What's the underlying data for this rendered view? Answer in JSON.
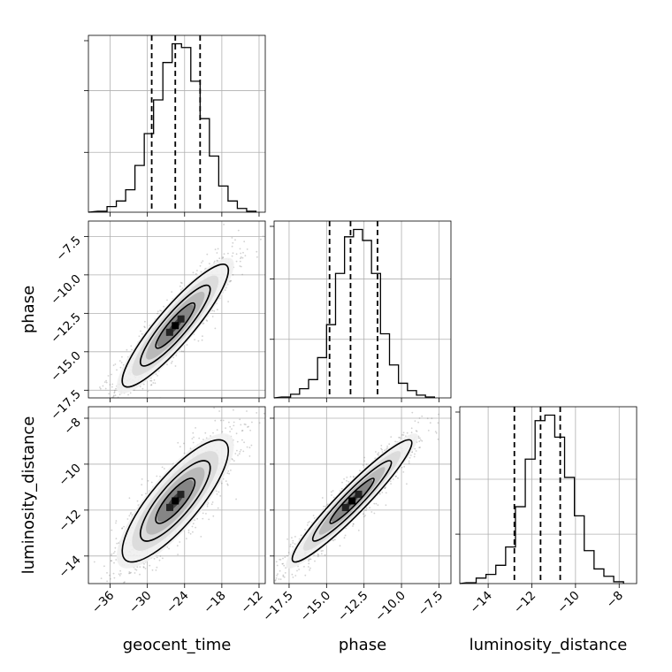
{
  "chart_data": {
    "type": "corner",
    "parameters": [
      "geocent_time",
      "phase",
      "luminosity_distance"
    ],
    "grid": true,
    "quantile_lines_style": "dashed",
    "panels": [
      {
        "id": "hist-geocent_time",
        "type": "histogram",
        "x_param": "geocent_time",
        "xlim": [
          -39.5,
          -11
        ],
        "bin_edges": [
          -38,
          -36.5,
          -35,
          -33.5,
          -32,
          -30.5,
          -29,
          -27.5,
          -26,
          -24.5,
          -23,
          -21.5,
          -20,
          -18.5,
          -17,
          -15.5,
          -14,
          -12.5
        ],
        "counts": [
          0.5,
          3,
          6,
          12,
          25,
          42,
          60,
          80,
          90,
          88,
          70,
          50,
          30,
          14,
          6,
          2,
          0.5
        ],
        "quantiles": [
          -29.3,
          -25.5,
          -21.5
        ],
        "xticks": [
          -36,
          -30,
          -24,
          -18,
          -12
        ],
        "yticks": [
          32,
          65
        ]
      },
      {
        "id": "hist-phase",
        "type": "histogram",
        "x_param": "phase",
        "xlim": [
          -18.5,
          -6.7
        ],
        "bin_edges": [
          -18.0,
          -17.4,
          -16.8,
          -16.2,
          -15.6,
          -15.0,
          -14.4,
          -13.8,
          -13.2,
          -12.6,
          -12.0,
          -11.4,
          -10.8,
          -10.2,
          -9.6,
          -9.0,
          -8.4,
          -7.8
        ],
        "counts": [
          0.5,
          2,
          5,
          10,
          22,
          40,
          68,
          88,
          92,
          86,
          68,
          35,
          18,
          8,
          4,
          1.5,
          0.5
        ],
        "quantiles": [
          -14.8,
          -13.4,
          -11.6
        ],
        "xticks": [
          -17.5,
          -15.0,
          -12.5,
          -10.0,
          -7.5
        ],
        "yticks": [
          32,
          65
        ]
      },
      {
        "id": "hist-luminosity_distance",
        "type": "histogram",
        "x_param": "luminosity_distance",
        "xlim": [
          -15.3,
          -7.2
        ],
        "bin_edges": [
          -15.0,
          -14.55,
          -14.1,
          -13.65,
          -13.2,
          -12.75,
          -12.3,
          -11.85,
          -11.4,
          -10.95,
          -10.5,
          -10.05,
          -9.6,
          -9.15,
          -8.7,
          -8.25,
          -7.8
        ],
        "counts": [
          0.5,
          3,
          5,
          10,
          20,
          42,
          68,
          89,
          92,
          80,
          58,
          37,
          18,
          8,
          4,
          1
        ],
        "quantiles": [
          -12.8,
          -11.6,
          -10.7
        ],
        "xticks": [
          -14,
          -12,
          -10,
          -8
        ],
        "yticks": [
          27,
          57
        ]
      },
      {
        "id": "scatter-geocent_time-phase",
        "type": "2d-density",
        "x_param": "geocent_time",
        "y_param": "phase",
        "xlim": [
          -39.5,
          -11
        ],
        "ylim": [
          -18,
          -6.5
        ],
        "xticks": [
          -36,
          -30,
          -24,
          -18,
          -12
        ],
        "yticks": [
          -17.5,
          -15.0,
          -12.5,
          -10.0,
          -7.5
        ],
        "mean": [
          -25.5,
          -13.3
        ],
        "std": [
          4.5,
          2.1
        ],
        "correlation": 0.9,
        "contours": [
          [
            -31,
            -16
          ],
          [
            -26,
            -13.5
          ],
          [
            -19,
            -9
          ]
        ]
      },
      {
        "id": "scatter-geocent_time-luminosity_distance",
        "type": "2d-density",
        "x_param": "geocent_time",
        "y_param": "luminosity_distance",
        "xlim": [
          -39.5,
          -11
        ],
        "ylim": [
          -15.2,
          -7.5
        ],
        "xticks": [
          -36,
          -30,
          -24,
          -18,
          -12
        ],
        "yticks": [
          -14,
          -12,
          -10,
          -8
        ],
        "mean": [
          -25.5,
          -11.6
        ],
        "std": [
          4.5,
          1.4
        ],
        "correlation": 0.82,
        "contours": [
          [
            -31,
            -13.5
          ],
          [
            -25,
            -11.5
          ],
          [
            -19,
            -9.5
          ]
        ]
      },
      {
        "id": "scatter-phase-luminosity_distance",
        "type": "2d-density",
        "x_param": "phase",
        "y_param": "luminosity_distance",
        "xlim": [
          -18.5,
          -6.7
        ],
        "ylim": [
          -15.2,
          -7.5
        ],
        "xticks": [
          -17.5,
          -15.0,
          -12.5,
          -10.0,
          -7.5
        ],
        "yticks": [
          -14,
          -12,
          -10,
          -8
        ],
        "mean": [
          -13.3,
          -11.6
        ],
        "std": [
          2.1,
          1.4
        ],
        "correlation": 0.95,
        "contours": [
          [
            -16,
            -13.5
          ],
          [
            -13.3,
            -11.6
          ],
          [
            -10.5,
            -9.8
          ]
        ]
      }
    ],
    "tick_labels": {
      "geocent_time": [
        "−36",
        "−30",
        "−24",
        "−18",
        "−12"
      ],
      "phase_x": [
        "−17.5",
        "−15.0",
        "−12.5",
        "−10.0",
        "−7.5"
      ],
      "phase_y": [
        "−7.5",
        "−10.0",
        "−12.5",
        "−15.0",
        "−17.5"
      ],
      "luminosity_distance_x": [
        "−14",
        "−12",
        "−10",
        "−8"
      ],
      "luminosity_distance_y": [
        "−8",
        "−10",
        "−12",
        "−14"
      ]
    },
    "axis_labels": {
      "x": [
        "geocent_time",
        "phase",
        "luminosity_distance"
      ],
      "y": [
        "phase",
        "luminosity_distance"
      ]
    }
  }
}
